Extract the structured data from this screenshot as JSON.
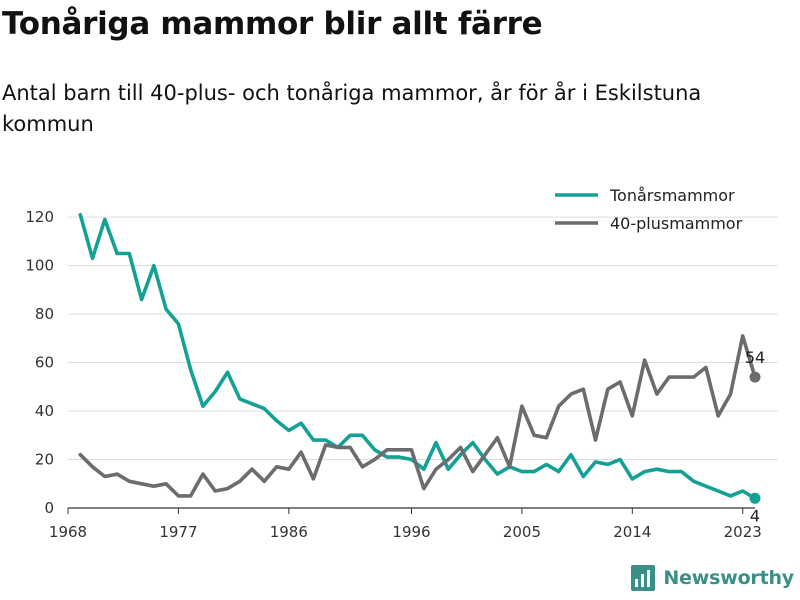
{
  "header": {
    "title": "Tonåriga mammor blir allt färre",
    "subtitle": "Antal barn till 40-plus- och tonåriga mammor, år för år i Eskilstuna kommun"
  },
  "brand": {
    "name": "Newsworthy",
    "logo_icon": "bar-chart-logo-icon"
  },
  "colors": {
    "teen": "#14a195",
    "forty": "#6b6b70",
    "grid": "#dddddd",
    "axis": "#333333"
  },
  "chart_data": {
    "type": "line",
    "title": "",
    "xlabel": "",
    "ylabel": "",
    "x_ticks": [
      "1968",
      "1977",
      "1986",
      "1996",
      "2005",
      "2014",
      "2023"
    ],
    "y_ticks": [
      "0",
      "20",
      "40",
      "60",
      "80",
      "100",
      "120"
    ],
    "xlim": [
      1968,
      2024
    ],
    "ylim": [
      0,
      125
    ],
    "grid": "horizontal",
    "legend_position": "top-right",
    "x": [
      1969,
      1970,
      1971,
      1972,
      1973,
      1974,
      1975,
      1976,
      1977,
      1978,
      1979,
      1980,
      1981,
      1982,
      1983,
      1984,
      1985,
      1986,
      1987,
      1988,
      1989,
      1990,
      1991,
      1992,
      1993,
      1994,
      1995,
      1996,
      1997,
      1998,
      1999,
      2000,
      2001,
      2002,
      2003,
      2004,
      2005,
      2006,
      2007,
      2008,
      2009,
      2010,
      2011,
      2012,
      2013,
      2014,
      2015,
      2016,
      2017,
      2018,
      2019,
      2020,
      2021,
      2022,
      2023,
      2024
    ],
    "series": [
      {
        "name": "Tonårsmammor",
        "color": "#14a195",
        "end_label": "4",
        "values": [
          121,
          103,
          119,
          105,
          105,
          86,
          100,
          82,
          76,
          57,
          42,
          48,
          56,
          45,
          43,
          41,
          36,
          32,
          35,
          28,
          28,
          25,
          30,
          30,
          24,
          21,
          21,
          20,
          16,
          27,
          16,
          22,
          27,
          20,
          14,
          17,
          15,
          15,
          18,
          15,
          22,
          13,
          19,
          18,
          20,
          12,
          15,
          16,
          15,
          15,
          11,
          9,
          7,
          5,
          7,
          4
        ]
      },
      {
        "name": "40-plusmammor",
        "color": "#6b6b70",
        "end_label": "54",
        "values": [
          22,
          17,
          13,
          14,
          11,
          10,
          9,
          10,
          5,
          5,
          14,
          7,
          8,
          11,
          16,
          11,
          17,
          16,
          23,
          12,
          26,
          25,
          25,
          17,
          20,
          24,
          24,
          24,
          8,
          16,
          20,
          25,
          15,
          22,
          29,
          17,
          42,
          30,
          29,
          42,
          47,
          49,
          28,
          49,
          52,
          38,
          61,
          47,
          54,
          54,
          54,
          58,
          38,
          47,
          71,
          54
        ]
      }
    ]
  }
}
